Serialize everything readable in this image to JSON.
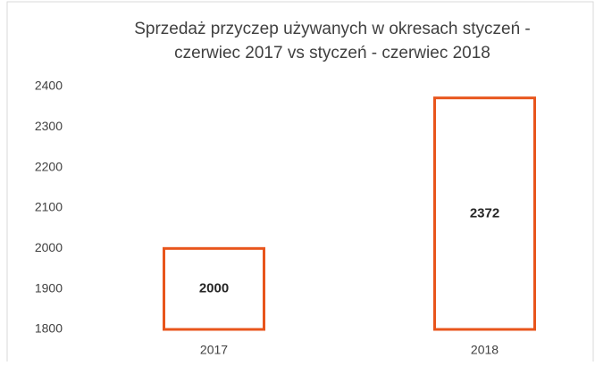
{
  "chart_data": {
    "type": "bar",
    "title": [
      "Sprzedaż przyczep używanych w okresach styczeń -",
      "czerwiec 2017 vs styczeń - czerwiec 2018"
    ],
    "categories": [
      "2017",
      "2018"
    ],
    "values": [
      2000,
      2372
    ],
    "color": "#e8551c",
    "ylim": [
      1800,
      2400
    ],
    "yticks": [
      1800,
      1900,
      2000,
      2100,
      2200,
      2300,
      2400
    ],
    "grid": false
  }
}
